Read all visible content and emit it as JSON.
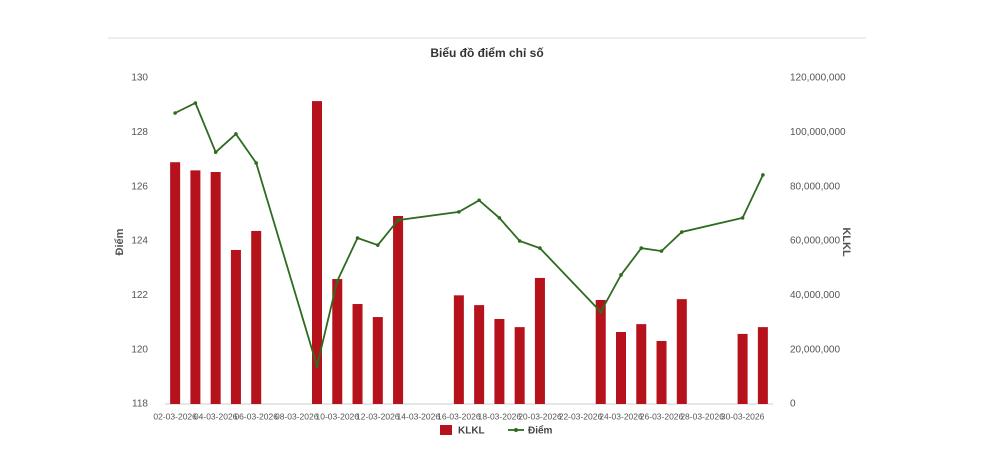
{
  "chart_data": {
    "type": "bar-line",
    "title": "Biểu đồ điểm chỉ số",
    "categories": [
      "02-03-2026",
      null,
      "04-03-2026",
      null,
      "06-03-2026",
      null,
      "08-03-2026",
      null,
      "10-03-2026",
      null,
      "12-03-2026",
      null,
      "14-03-2026",
      null,
      "16-03-2026",
      null,
      "18-03-2026",
      null,
      "20-03-2026",
      null,
      "22-03-2026",
      null,
      "24-03-2026",
      null,
      "26-03-2026",
      null,
      "28-03-2026",
      null,
      "30-03-2026",
      null
    ],
    "series": [
      {
        "name": "KLKL",
        "type": "bar",
        "axis": "y2",
        "color": "#b5121b",
        "values": [
          89000000,
          86000000,
          85400000,
          56700000,
          63700000,
          null,
          null,
          111500000,
          46000000,
          36800000,
          32000000,
          69200000,
          null,
          null,
          40000000,
          36400000,
          31300000,
          28300000,
          46400000,
          null,
          null,
          38300000,
          26500000,
          29400000,
          23200000,
          38600000,
          null,
          null,
          25800000,
          28300000
        ]
      },
      {
        "name": "Điểm",
        "type": "line",
        "axis": "y",
        "color": "#2e6b1f",
        "span_gaps": true,
        "values": [
          128.71,
          129.08,
          127.27,
          127.94,
          126.87,
          null,
          null,
          119.4,
          122.53,
          124.11,
          123.85,
          124.77,
          null,
          null,
          125.07,
          125.5,
          124.85,
          124.0,
          123.74,
          null,
          null,
          121.39,
          122.75,
          123.74,
          123.63,
          124.33,
          null,
          null,
          124.85,
          126.43
        ]
      }
    ],
    "y_label": "Điểm",
    "y2_label": "KLKL",
    "ylim": [
      118,
      130
    ],
    "yticks": [
      118,
      120,
      122,
      124,
      126,
      128,
      130
    ],
    "y2lim": [
      0,
      120000000
    ],
    "y2ticks": [
      0,
      {
        "value": 20000000,
        "label": "20,000,000"
      },
      {
        "value": 40000000,
        "label": "40,000,000"
      },
      {
        "value": 60000000,
        "label": "60,000,000"
      },
      {
        "value": 80000000,
        "label": "80,000,000"
      },
      {
        "value": 100000000,
        "label": "100,000,000"
      },
      {
        "value": 120000000,
        "label": "120,000,000"
      }
    ],
    "grid": false,
    "legend": "bottom"
  }
}
